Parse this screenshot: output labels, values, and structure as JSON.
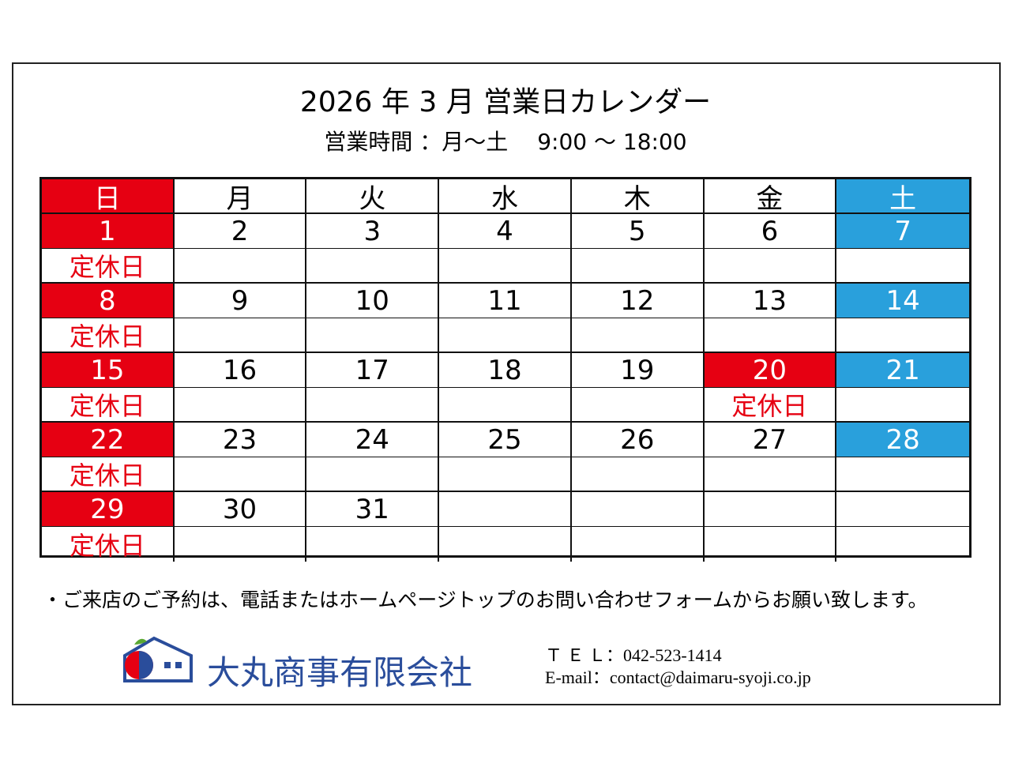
{
  "title": "2026 年 3 月  営業日カレンダー",
  "hours": "営業時間 ：月～土　 9:00 ～ 18:00",
  "weekdays": [
    "日",
    "月",
    "火",
    "水",
    "木",
    "金",
    "土"
  ],
  "closed_color": "#e60012",
  "saturday_color": "#29a0dc",
  "weeks": [
    [
      {
        "day": 1,
        "note": "定休日"
      },
      {
        "day": 2
      },
      {
        "day": 3
      },
      {
        "day": 4
      },
      {
        "day": 5
      },
      {
        "day": 6
      },
      {
        "day": 7
      }
    ],
    [
      {
        "day": 8,
        "note": "定休日"
      },
      {
        "day": 9
      },
      {
        "day": 10
      },
      {
        "day": 11
      },
      {
        "day": 12
      },
      {
        "day": 13
      },
      {
        "day": 14
      }
    ],
    [
      {
        "day": 15,
        "note": "定休日"
      },
      {
        "day": 16
      },
      {
        "day": 17
      },
      {
        "day": 18
      },
      {
        "day": 19
      },
      {
        "day": 20,
        "note": "定休日"
      },
      {
        "day": 21
      }
    ],
    [
      {
        "day": 22,
        "note": "定休日"
      },
      {
        "day": 23
      },
      {
        "day": 24
      },
      {
        "day": 25
      },
      {
        "day": 26
      },
      {
        "day": 27
      },
      {
        "day": 28
      }
    ],
    [
      {
        "day": 29,
        "note": "定休日"
      },
      {
        "day": 30
      },
      {
        "day": 31
      },
      null,
      null,
      null,
      null
    ]
  ],
  "notice": "・ご来店のご予約は、電話またはホームページトップのお問い合わせフォームからお願い致します。",
  "company": "大丸商事有限会社",
  "contacts": [
    {
      "label": "Ｔ Ｅ Ｌ：",
      "value": "042-523-1414"
    },
    {
      "label": "E-mail：",
      "value": "contact@daimaru-syoji.co.jp"
    }
  ]
}
